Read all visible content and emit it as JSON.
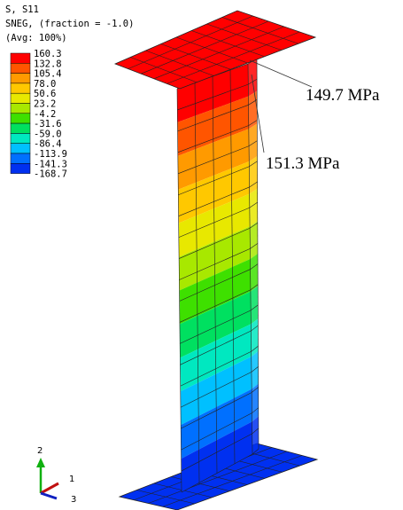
{
  "legend": {
    "title": [
      "S, S11",
      "SNEG, (fraction = -1.0)",
      "(Avg: 100%)"
    ],
    "values": [
      "160.3",
      "132.8",
      "105.4",
      "78.0",
      "50.6",
      "23.2",
      "-4.2",
      "-31.6",
      "-59.0",
      "-86.4",
      "-113.9",
      "-141.3",
      "-168.7"
    ],
    "colors": [
      "#ff0000",
      "#ff5500",
      "#ff9a00",
      "#ffc800",
      "#e8e800",
      "#a8e800",
      "#3ee000",
      "#00e060",
      "#00e8c0",
      "#00c0ff",
      "#0070ff",
      "#0030f0"
    ]
  },
  "annotations": [
    "149.7 MPa",
    "151.3 MPa"
  ],
  "triad": [
    "2",
    "1",
    "3"
  ]
}
